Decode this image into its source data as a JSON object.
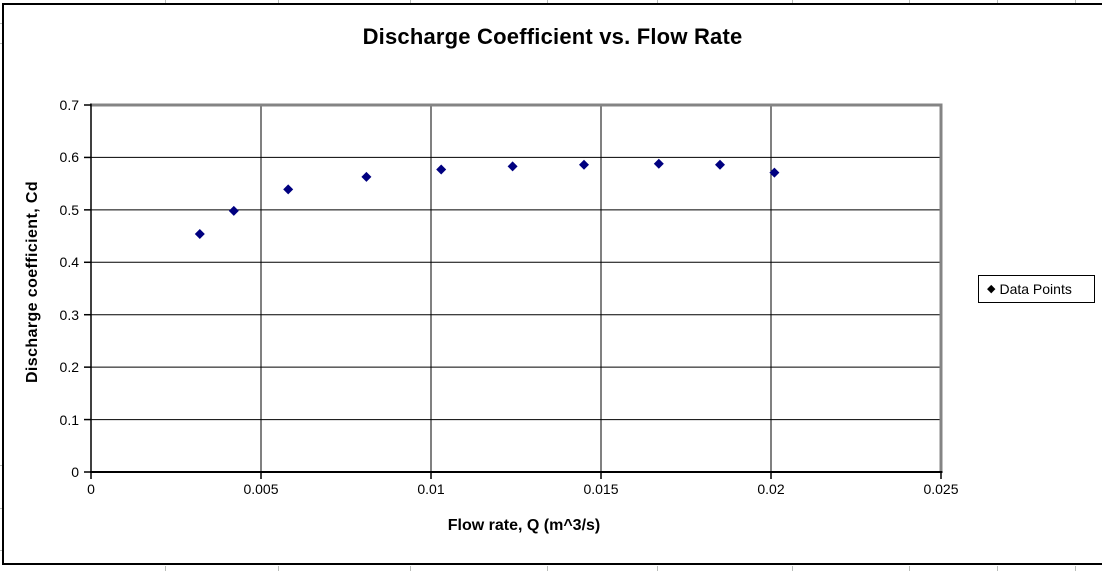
{
  "chart_data": {
    "type": "scatter",
    "title": "Discharge Coefficient vs. Flow Rate",
    "xlabel": "Flow rate, Q (m^3/s)",
    "ylabel": "Discharge coefficient, Cd",
    "xlim": [
      0,
      0.025
    ],
    "ylim": [
      0,
      0.7
    ],
    "x_ticks": {
      "values": [
        0,
        0.005,
        0.01,
        0.015,
        0.02,
        0.025
      ],
      "labels": [
        "0",
        "0.005",
        "0.01",
        "0.015",
        "0.02",
        "0.025"
      ]
    },
    "y_ticks": {
      "values": [
        0,
        0.1,
        0.2,
        0.3,
        0.4,
        0.5,
        0.6,
        0.7
      ],
      "labels": [
        "0",
        "0.1",
        "0.2",
        "0.3",
        "0.4",
        "0.5",
        "0.6",
        "0.7"
      ]
    },
    "grid": true,
    "legend": {
      "position": "right",
      "label": "Data Points",
      "marker_glyph": "◆"
    },
    "series": [
      {
        "name": "Data Points",
        "marker": {
          "shape": "diamond",
          "color": "#000080",
          "size": 10
        },
        "points": [
          [
            0.0032,
            0.454
          ],
          [
            0.0042,
            0.498
          ],
          [
            0.0058,
            0.539
          ],
          [
            0.0081,
            0.563
          ],
          [
            0.0103,
            0.577
          ],
          [
            0.0124,
            0.583
          ],
          [
            0.0145,
            0.586
          ],
          [
            0.0167,
            0.588
          ],
          [
            0.0185,
            0.586
          ],
          [
            0.0201,
            0.571
          ]
        ]
      }
    ],
    "colors": {
      "marker": "#000080",
      "gridline": "#000000",
      "axis": "#000000",
      "plot_border": "#848484",
      "background": "#ffffff"
    }
  }
}
